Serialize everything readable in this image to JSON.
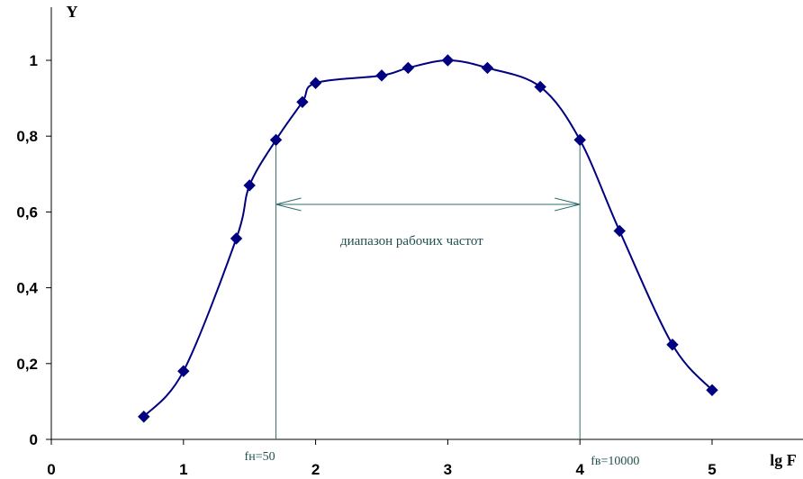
{
  "chart_data": {
    "type": "line",
    "xlabel": "lg F",
    "ylabel": "Y",
    "xlim": [
      0,
      5.5
    ],
    "ylim": [
      0,
      1.1
    ],
    "x_ticks": [
      "0",
      "1",
      "2",
      "3",
      "4",
      "5"
    ],
    "y_ticks": [
      "0",
      "0,2",
      "0,4",
      "0,6",
      "0,8",
      "1"
    ],
    "grid": false,
    "series": [
      {
        "x": [
          0.7,
          1.0,
          1.4,
          1.5,
          1.7,
          1.9,
          2.0,
          2.5,
          2.7,
          3.0,
          3.3,
          3.7,
          4.0,
          4.3,
          4.7,
          5.0
        ],
        "y": [
          0.06,
          0.18,
          0.53,
          0.67,
          0.79,
          0.89,
          0.94,
          0.96,
          0.98,
          1.0,
          0.98,
          0.93,
          0.79,
          0.55,
          0.25,
          0.13
        ],
        "color": "#000080",
        "marker": "diamond",
        "smooth": true
      }
    ],
    "annotations": {
      "band_label": "диапазон рабочих частот",
      "band_x": [
        1.7,
        4.0
      ],
      "band_y": 0.62,
      "fn_label": "fн=50",
      "fn_x": 1.7,
      "fv_label": "fв=10000",
      "fv_x": 4.0
    }
  }
}
